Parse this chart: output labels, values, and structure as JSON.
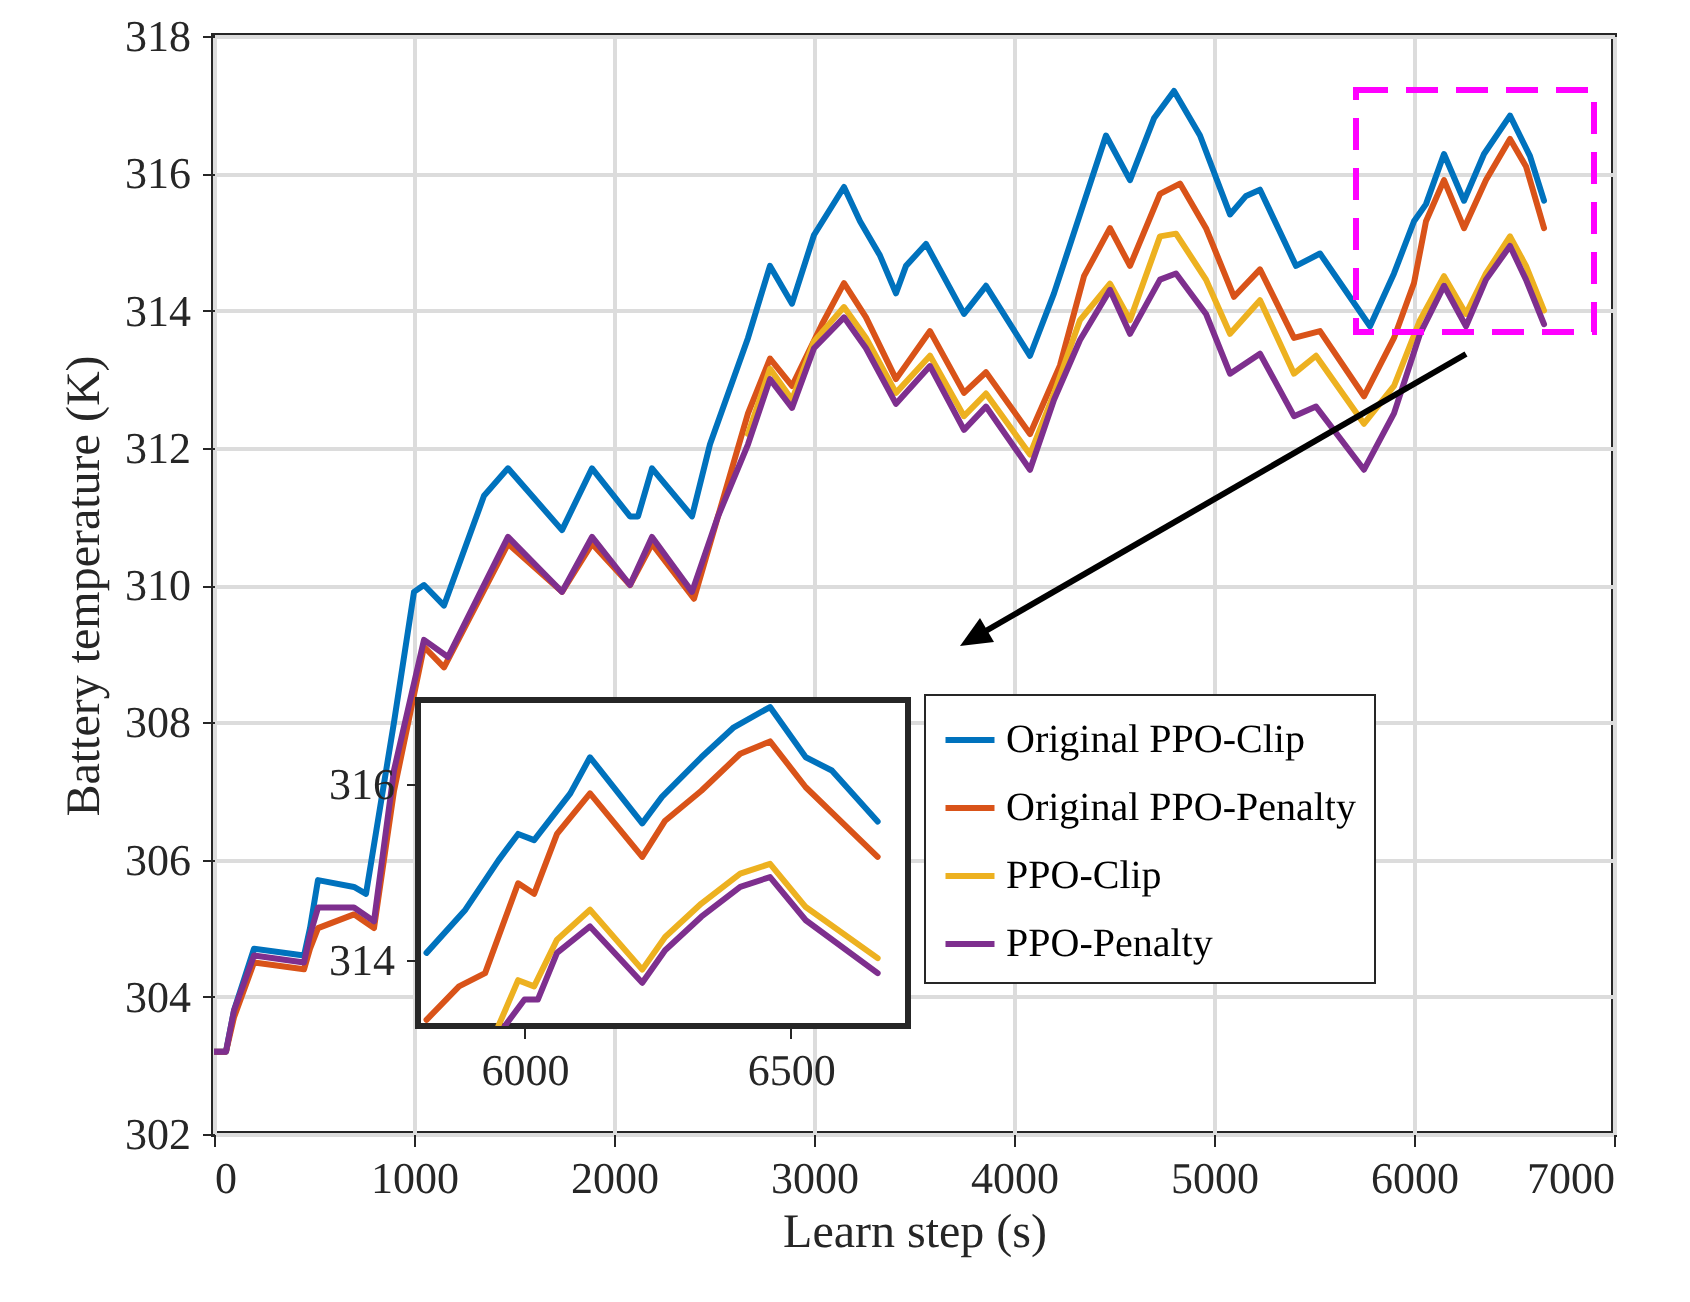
{
  "chart_data": [
    {
      "type": "line",
      "xlabel": "Learn step (s)",
      "ylabel": "Battery temperature (K)",
      "xlim": [
        0,
        7000
      ],
      "xticks": [
        0,
        1000,
        2000,
        3000,
        4000,
        5000,
        6000,
        7000
      ],
      "ylim": [
        302,
        318
      ],
      "yticks": [
        302,
        304,
        306,
        308,
        310,
        312,
        314,
        316,
        318
      ],
      "grid": true,
      "legend": "bottom right",
      "line_style": "solid",
      "marker": "none",
      "series": [
        {
          "name": "Original PPO-Clip",
          "color": "#0072bd",
          "x": [
            0,
            60,
            100,
            200,
            450,
            480,
            520,
            700,
            760,
            900,
            1000,
            1050,
            1150,
            1350,
            1470,
            1740,
            1890,
            2080,
            2120,
            2190,
            2390,
            2480,
            2670,
            2780,
            2890,
            3000,
            3150,
            3230,
            3330,
            3410,
            3460,
            3560,
            3750,
            3860,
            4080,
            4200,
            4330,
            4460,
            4580,
            4700,
            4800,
            4930,
            5080,
            5160,
            5230,
            5410,
            5530,
            5780,
            5900,
            6000,
            6060,
            6150,
            6250,
            6350,
            6480,
            6580,
            6650
          ],
          "values": [
            303.2,
            303.2,
            303.8,
            304.7,
            304.6,
            305.0,
            305.7,
            305.6,
            305.5,
            308.0,
            309.9,
            310.0,
            309.7,
            311.3,
            311.7,
            310.8,
            311.7,
            311.0,
            311.0,
            311.7,
            311.0,
            312.05,
            313.6,
            314.65,
            314.1,
            315.1,
            315.8,
            315.3,
            314.8,
            314.25,
            314.65,
            314.97,
            313.95,
            314.36,
            313.34,
            314.25,
            315.4,
            316.55,
            315.9,
            316.8,
            317.2,
            316.55,
            315.4,
            315.67,
            315.76,
            314.65,
            314.83,
            313.77,
            314.54,
            315.3,
            315.55,
            316.28,
            315.6,
            316.28,
            316.84,
            316.25,
            315.6
          ]
        },
        {
          "name": "Original PPO-Penalty",
          "color": "#d95319",
          "x": [
            0,
            60,
            100,
            200,
            450,
            480,
            520,
            700,
            800,
            900,
            1050,
            1150,
            1470,
            1740,
            1890,
            2080,
            2190,
            2400,
            2520,
            2670,
            2780,
            2890,
            3040,
            3150,
            3260,
            3410,
            3580,
            3750,
            3860,
            4080,
            4230,
            4350,
            4480,
            4580,
            4730,
            4830,
            4960,
            5100,
            5230,
            5400,
            5530,
            5750,
            5900,
            6000,
            6060,
            6150,
            6250,
            6360,
            6480,
            6560,
            6650
          ],
          "values": [
            303.2,
            303.2,
            303.7,
            304.5,
            304.4,
            304.7,
            305.0,
            305.2,
            305.0,
            307.0,
            309.1,
            308.8,
            310.6,
            309.9,
            310.6,
            310.0,
            310.6,
            309.8,
            311.0,
            312.5,
            313.3,
            312.9,
            313.8,
            314.4,
            313.9,
            313.0,
            313.7,
            312.8,
            313.1,
            312.2,
            313.2,
            314.5,
            315.2,
            314.65,
            315.7,
            315.85,
            315.2,
            314.2,
            314.6,
            313.6,
            313.7,
            312.75,
            313.6,
            314.4,
            315.3,
            315.9,
            315.2,
            315.9,
            316.5,
            316.1,
            315.2
          ]
        },
        {
          "name": "PPO-Clip",
          "color": "#edb120",
          "x": [
            2670,
            2780,
            2890,
            3000,
            3150,
            3260,
            3410,
            3580,
            3750,
            3860,
            4080,
            4200,
            4330,
            4480,
            4580,
            4730,
            4810,
            4960,
            5080,
            5230,
            5400,
            5510,
            5750,
            5900,
            6030,
            6150,
            6260,
            6360,
            6480,
            6560,
            6650
          ],
          "values": [
            312.2,
            313.15,
            312.7,
            313.55,
            314.05,
            313.6,
            312.8,
            313.34,
            312.46,
            312.79,
            311.9,
            312.79,
            313.86,
            314.39,
            313.86,
            315.08,
            315.12,
            314.45,
            313.66,
            314.15,
            313.08,
            313.34,
            312.35,
            312.9,
            313.86,
            314.5,
            313.95,
            314.54,
            315.08,
            314.65,
            314.0
          ]
        },
        {
          "name": "PPO-Penalty",
          "color": "#7e2f8e",
          "x": [
            0,
            60,
            100,
            200,
            450,
            480,
            520,
            700,
            800,
            900,
            1050,
            1170,
            1470,
            1740,
            1890,
            2080,
            2190,
            2390,
            2520,
            2670,
            2780,
            2890,
            3000,
            3150,
            3260,
            3410,
            3580,
            3750,
            3860,
            4080,
            4200,
            4330,
            4480,
            4580,
            4730,
            4810,
            4960,
            5080,
            5230,
            5400,
            5510,
            5750,
            5900,
            6030,
            6150,
            6260,
            6360,
            6480,
            6560,
            6650
          ],
          "values": [
            303.2,
            303.2,
            303.8,
            304.6,
            304.5,
            304.9,
            305.3,
            305.3,
            305.1,
            307.3,
            309.2,
            308.95,
            310.7,
            309.9,
            310.7,
            310.0,
            310.7,
            309.9,
            311.0,
            312.05,
            313.0,
            312.58,
            313.45,
            313.9,
            313.45,
            312.64,
            313.19,
            312.26,
            312.6,
            311.68,
            312.7,
            313.57,
            314.3,
            313.66,
            314.45,
            314.54,
            313.95,
            313.08,
            313.37,
            312.46,
            312.6,
            311.68,
            312.5,
            313.66,
            314.36,
            313.77,
            314.45,
            314.94,
            314.45,
            313.8
          ]
        }
      ]
    },
    {
      "type": "line",
      "xlim": [
        5800,
        6720
      ],
      "xticks": [
        6000,
        6500
      ],
      "ylim": [
        313.25,
        316.95
      ],
      "yticks": [
        314,
        316
      ],
      "line_style": "solid",
      "marker": "none",
      "series": [
        {
          "color": "#0072bd",
          "x": [
            5816,
            5889,
            5951,
            5988,
            6018,
            6086,
            6123,
            6221,
            6258,
            6332,
            6393,
            6461,
            6528,
            6577,
            6663
          ],
          "values": [
            314.08,
            314.57,
            315.13,
            315.43,
            315.36,
            315.89,
            316.3,
            315.55,
            315.85,
            316.3,
            316.64,
            316.87,
            316.3,
            316.15,
            315.57
          ]
        },
        {
          "color": "#d95319",
          "x": [
            5816,
            5877,
            5926,
            5988,
            6018,
            6061,
            6123,
            6221,
            6264,
            6332,
            6405,
            6461,
            6528,
            6663
          ],
          "values": [
            313.32,
            313.7,
            313.85,
            314.87,
            314.75,
            315.43,
            315.89,
            315.17,
            315.58,
            315.92,
            316.34,
            316.48,
            315.96,
            315.17
          ]
        },
        {
          "color": "#edb120",
          "x": [
            5951,
            5988,
            6018,
            6061,
            6123,
            6221,
            6264,
            6332,
            6405,
            6461,
            6528,
            6663
          ],
          "values": [
            313.25,
            313.77,
            313.7,
            314.23,
            314.57,
            313.89,
            314.26,
            314.64,
            314.98,
            315.09,
            314.6,
            314.02
          ]
        },
        {
          "color": "#7e2f8e",
          "x": [
            5963,
            6000,
            6025,
            6061,
            6123,
            6221,
            6264,
            6332,
            6405,
            6461,
            6528,
            6663
          ],
          "values": [
            313.25,
            313.55,
            313.55,
            314.08,
            314.38,
            313.74,
            314.11,
            314.49,
            314.83,
            314.94,
            314.45,
            313.85
          ]
        }
      ]
    }
  ]
}
